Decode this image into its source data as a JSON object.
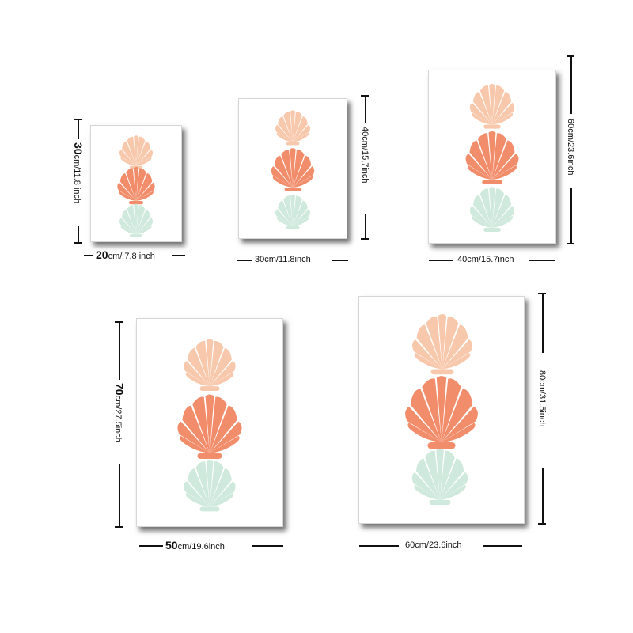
{
  "colors": {
    "shell_top": "#f8c8ac",
    "shell_mid": "#f28d6c",
    "shell_bottom": "#cfe9dc",
    "background": "#ffffff",
    "lines": "#111111"
  },
  "prints": [
    {
      "width_label_num": "20",
      "width_label_unit": "cm/ 7.8 inch",
      "height_label_num": "30",
      "height_label_unit": "cm/11.8 inch"
    },
    {
      "width_label": "30cm/11.8inch",
      "height_label": "40cm/15.7inch"
    },
    {
      "width_label": "40cm/15.7inch",
      "height_label": "60cm/23.6inch"
    },
    {
      "width_label_num": "50",
      "width_label_unit": "cm/19.6inch",
      "height_label_num": "70",
      "height_label_unit": "cm/27.5inch"
    },
    {
      "width_label": "60cm/23.6inch",
      "height_label": "80cm/31.5inch"
    }
  ]
}
